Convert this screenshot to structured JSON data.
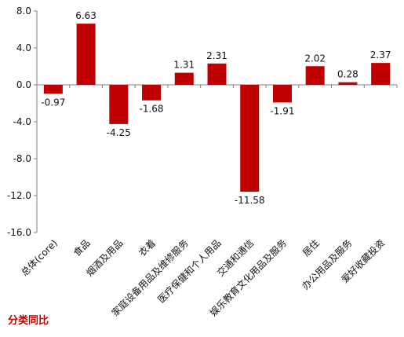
{
  "colors": {
    "bar": "#c00000",
    "axis": "#7f7f7f",
    "text": "#111111",
    "footer": "#c00000"
  },
  "footer": {
    "title": "分类同比"
  },
  "chart_data": {
    "type": "bar",
    "title": "",
    "xlabel": "",
    "ylabel": "",
    "categories": [
      "总体(core)",
      "食品",
      "烟酒及用品",
      "衣着",
      "家庭设备用品及维修服务",
      "医疗保健和个人用品",
      "交通和通信",
      "娱乐教育文化用品及服务",
      "居住",
      "办公用品及服务",
      "爱好收藏投资"
    ],
    "values": [
      -0.97,
      6.63,
      -4.25,
      -1.68,
      1.31,
      2.31,
      -11.58,
      -1.91,
      2.02,
      0.28,
      2.37
    ],
    "data_labels": [
      "-0.97",
      "6.63",
      "-4.25",
      "-1.68",
      "1.31",
      "2.31",
      "-11.58",
      "-1.91",
      "2.02",
      "0.28",
      "2.37"
    ],
    "ylim": [
      -16,
      8
    ],
    "yticks": [
      8,
      4,
      0,
      -4,
      -8,
      -12,
      -16
    ],
    "ytick_labels": [
      "8.0",
      "4.0",
      "0.0",
      "-4.0",
      "-8.0",
      "-12.0",
      "-16.0"
    ],
    "grid": false,
    "legend": "none"
  }
}
